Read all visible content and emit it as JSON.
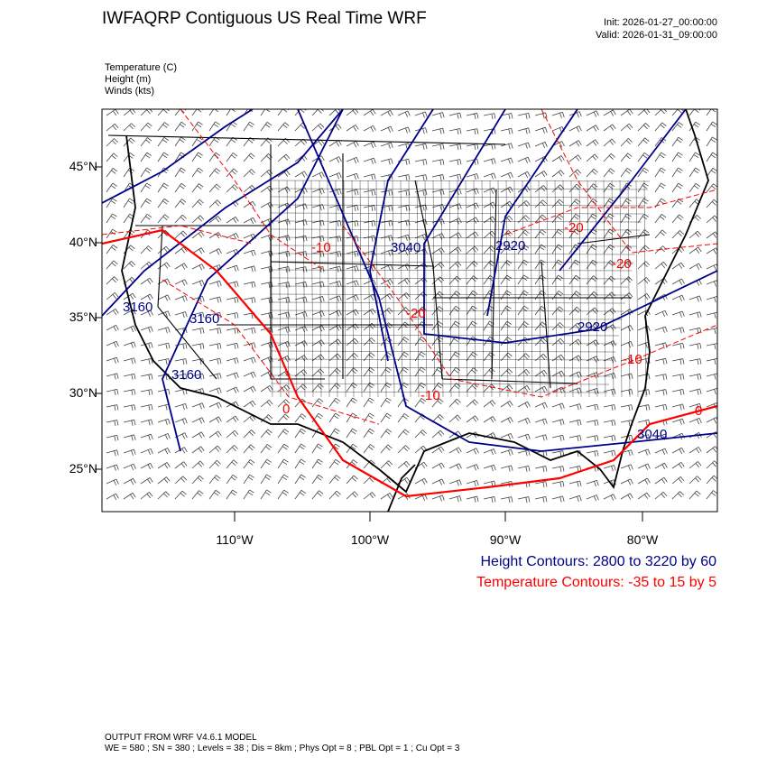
{
  "header": {
    "title": "IWFAQRP Contiguous US Real Time WRF",
    "init": "Init: 2026-01-27_00:00:00",
    "valid": "Valid: 2026-01-31_09:00:00"
  },
  "fields": [
    "Temperature   (C)",
    "Height   (m)",
    "Winds   (kts)"
  ],
  "axes": {
    "lat_labels": [
      "45°N",
      "40°N",
      "35°N",
      "30°N",
      "25°N"
    ],
    "lon_labels": [
      "110°W",
      "100°W",
      "90°W",
      "80°W"
    ]
  },
  "contour_labels": {
    "height": [
      "3040",
      "2920",
      "2920",
      "3040",
      "3160",
      "3160",
      "3160"
    ],
    "temperature": [
      "-10",
      "-20",
      "-20",
      "-20",
      "-10",
      "0",
      "-10",
      "0"
    ]
  },
  "legend": {
    "height": "Height Contours: 2800 to 3220 by 60",
    "temperature": "Temperature Contours: -35 to 15 by 5"
  },
  "colors": {
    "height": "#00008b",
    "temperature": "#ff0000"
  },
  "footer": {
    "line1": "OUTPUT FROM WRF V4.6.1 MODEL",
    "line2": "WE = 580 ; SN = 380 ; Levels = 38 ; Dis = 8km ; Phys Opt = 8 ; PBL Opt = 1 ; Cu Opt = 3"
  }
}
